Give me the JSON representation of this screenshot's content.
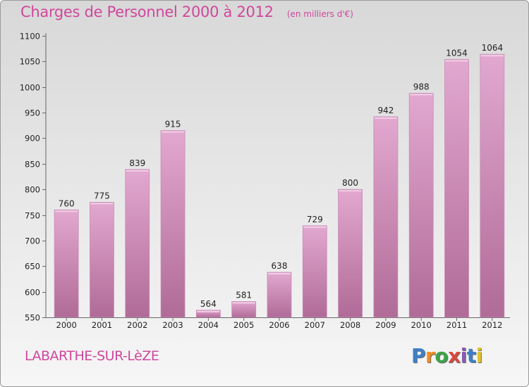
{
  "header": {
    "title": "Charges de Personnel 2000 à 2012",
    "unit": "(en milliers d'€)"
  },
  "footer": {
    "commune": "LABARTHE-SUR-LèZE",
    "brand": [
      "P",
      "r",
      "o",
      "x",
      "i",
      "t",
      "i"
    ],
    "brand_colors": [
      "#3d7fc7",
      "#f08c1e",
      "#3ea34b",
      "#d94a3d",
      "#8a5bb0",
      "#3d7fc7",
      "#e0c22e"
    ]
  },
  "colors": {
    "bar_top": "#e2a8d0",
    "bar_bottom": "#b06b97",
    "bar_edge": "#c98cb6",
    "title": "#d0479c"
  },
  "chart_data": {
    "type": "bar",
    "title": "Charges de Personnel 2000 à 2012",
    "xlabel": "",
    "ylabel": "",
    "categories": [
      "2000",
      "2001",
      "2002",
      "2003",
      "2004",
      "2005",
      "2006",
      "2007",
      "2008",
      "2009",
      "2010",
      "2011",
      "2012"
    ],
    "values": [
      760,
      775,
      839,
      915,
      564,
      581,
      638,
      729,
      800,
      942,
      988,
      1054,
      1064
    ],
    "ylim": [
      550,
      1100
    ],
    "yticks": [
      550,
      600,
      650,
      700,
      750,
      800,
      850,
      900,
      950,
      1000,
      1050,
      1100
    ],
    "grid": false,
    "legend": "none"
  }
}
